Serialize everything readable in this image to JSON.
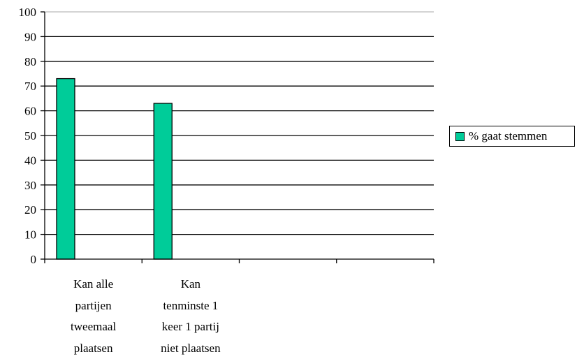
{
  "chart_data": {
    "type": "bar",
    "categories": [
      "Kan alle\npartijen\ntweemaal\nplaatsen",
      "Kan\ntenminste 1\nkeer 1 partij\nniet plaatsen",
      "",
      ""
    ],
    "series": [
      {
        "name": "% gaat stemmen",
        "values": [
          73,
          63,
          null,
          null
        ],
        "color": "#00cc99"
      }
    ],
    "ylim": [
      0,
      100
    ],
    "yticks": [
      "0",
      "10",
      "20",
      "30",
      "40",
      "50",
      "60",
      "70",
      "80",
      "90",
      "100"
    ],
    "grid": true,
    "legend_position": "right",
    "title": "",
    "xlabel": "",
    "ylabel": ""
  }
}
